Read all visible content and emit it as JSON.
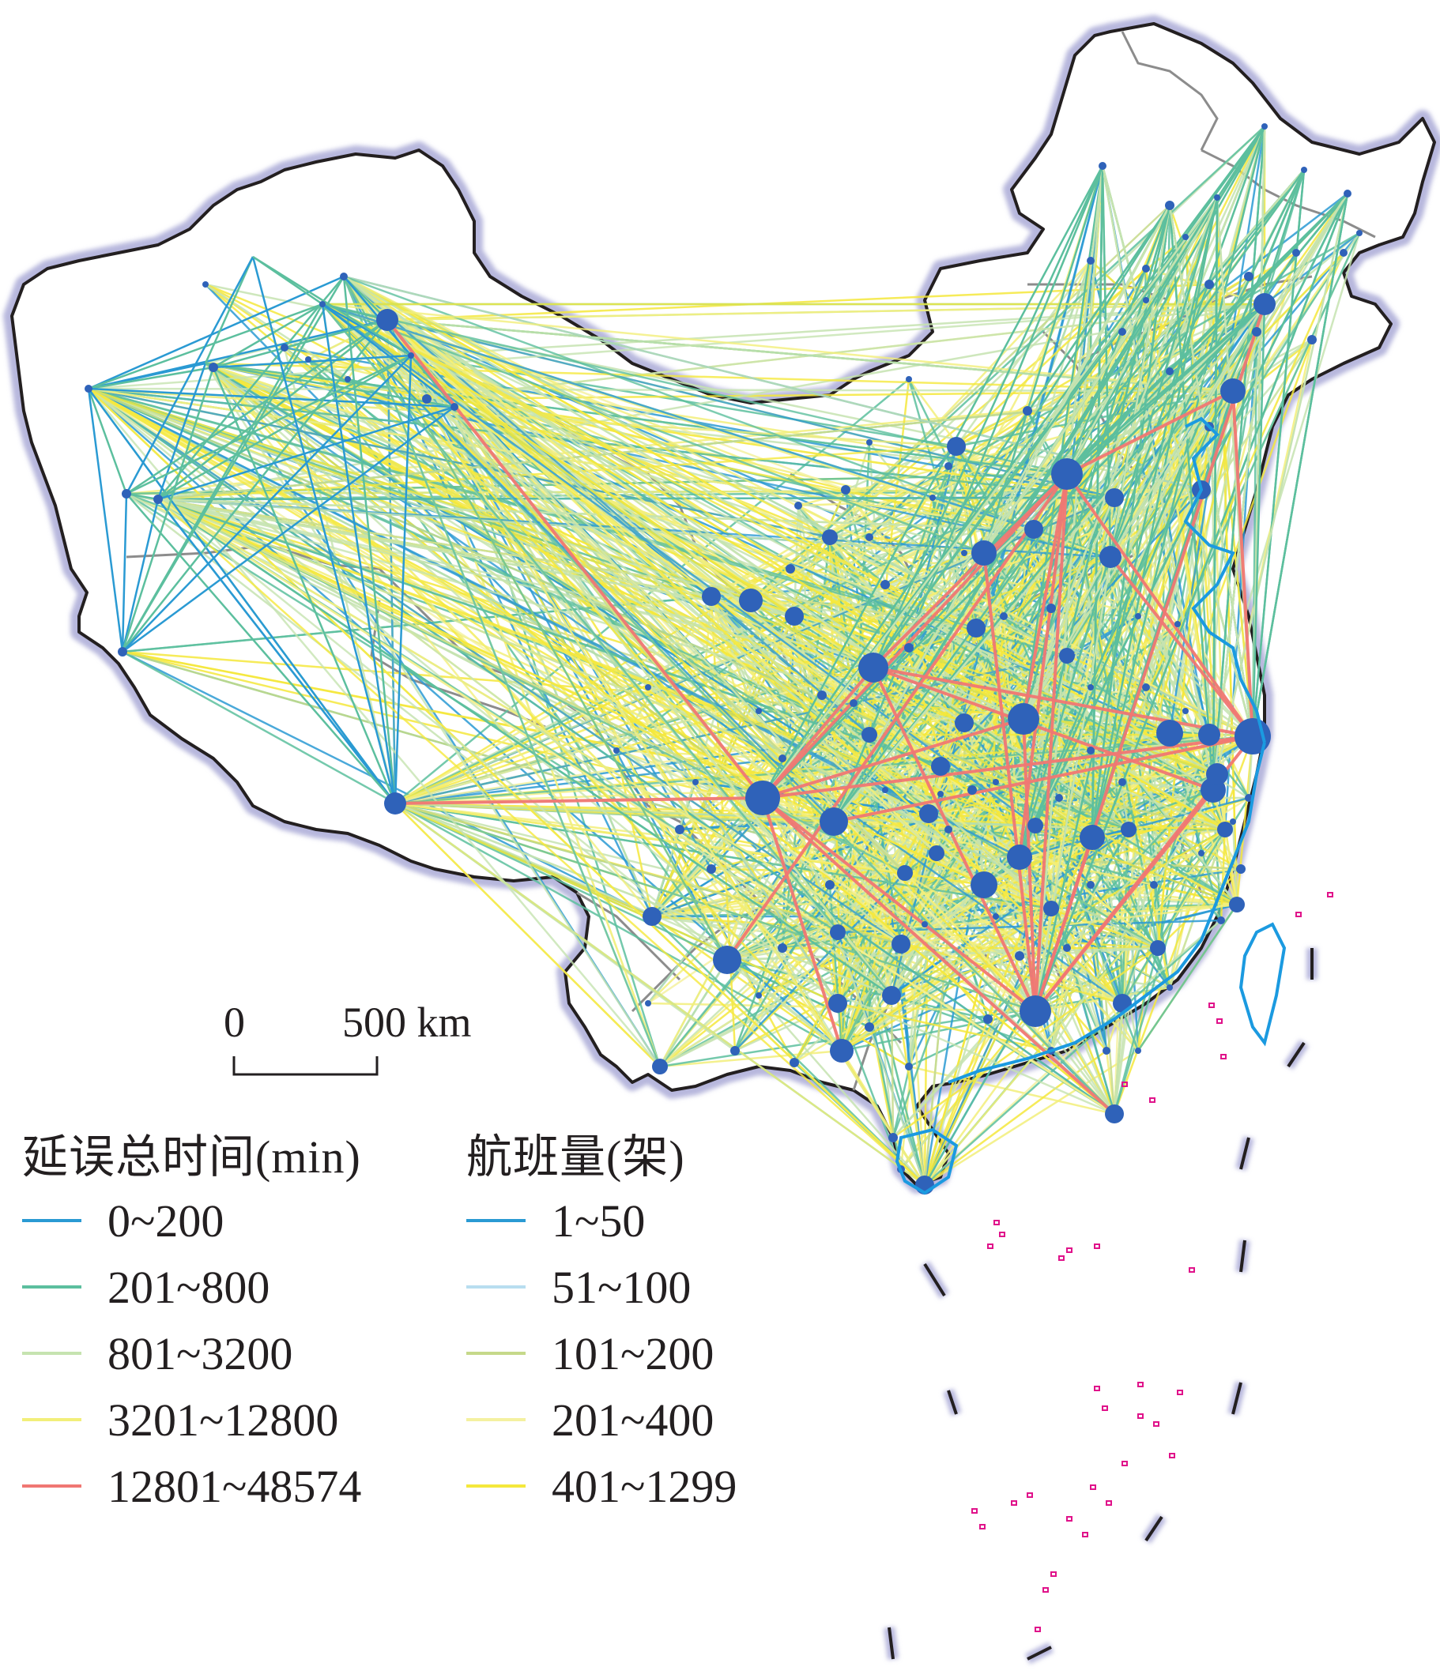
{
  "scale_bar": {
    "start_label": "0",
    "end_label": "500 km"
  },
  "legend_delay": {
    "title": "延误总时间(min)",
    "items": [
      {
        "label": "0~200",
        "color": "#2a9ad3"
      },
      {
        "label": "201~800",
        "color": "#5cbf9e"
      },
      {
        "label": "801~3200",
        "color": "#c6e3b0"
      },
      {
        "label": "3201~12800",
        "color": "#f2ef7a"
      },
      {
        "label": "12801~48574",
        "color": "#f07773"
      }
    ]
  },
  "legend_flights": {
    "title": "航班量(架)",
    "items": [
      {
        "label": "1~50",
        "color": "#2a9ad3"
      },
      {
        "label": "51~100",
        "color": "#b8def0"
      },
      {
        "label": "101~200",
        "color": "#c6d98a"
      },
      {
        "label": "201~400",
        "color": "#f4f1a0"
      },
      {
        "label": "401~1299",
        "color": "#f5e83c"
      }
    ]
  },
  "colors": {
    "node": "#2f62b9",
    "border_glow": "#b7b7dd",
    "border": "#231f20",
    "province_border": "#8c8c8c",
    "coast": "#1b9ae0",
    "islands": "#e0128a"
  }
}
